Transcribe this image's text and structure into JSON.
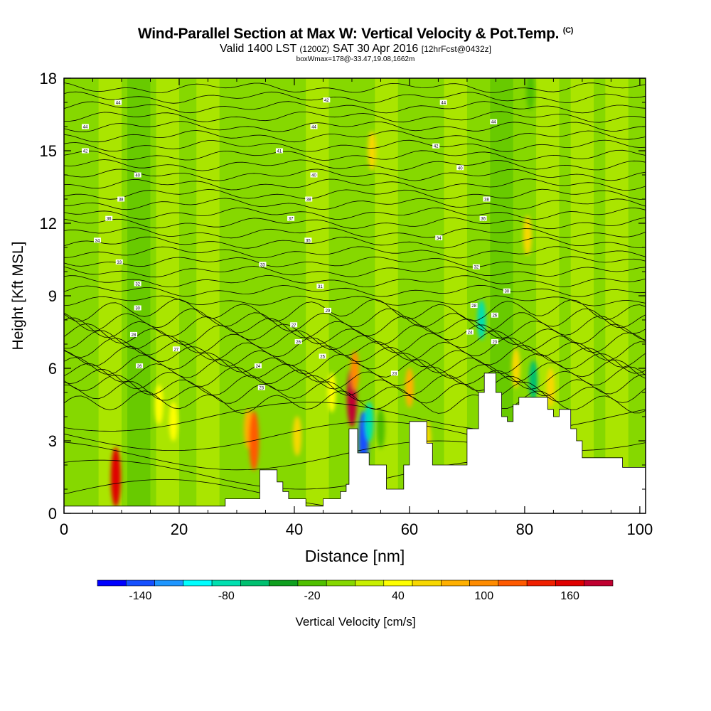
{
  "title": "Wind-Parallel Section at Max W: Vertical Velocity & Pot.Temp.",
  "title_unit": "(C)",
  "subtitle_main": "Valid 1400 LST",
  "subtitle_z": "(1200Z)",
  "subtitle_date": "SAT 30 Apr 2016",
  "subtitle_fcst": "[12hrFcst@0432z]",
  "subtitle2": "boxWmax=178@-33.47,19.08,1662m",
  "chart_data": {
    "type": "heatmap",
    "xlabel": "Distance [nm]",
    "ylabel": "Height [Kft MSL]",
    "xlim": [
      0,
      101
    ],
    "ylim": [
      0,
      18
    ],
    "xticks": [
      0,
      20,
      40,
      60,
      80,
      100
    ],
    "yticks": [
      0,
      3,
      6,
      9,
      12,
      15,
      18
    ],
    "colorbar": {
      "label": "Vertical Velocity [cm/s]",
      "ticks": [
        -140,
        -80,
        -20,
        40,
        100,
        160
      ],
      "min": -170,
      "max": 190,
      "step": 20,
      "colors": [
        "#0000ff",
        "#1650ff",
        "#1e96ff",
        "#00ffff",
        "#00e0b0",
        "#00c070",
        "#10a020",
        "#50c000",
        "#86d800",
        "#c8f000",
        "#ffff00",
        "#f8d800",
        "#ffb000",
        "#ff8c00",
        "#ff5a00",
        "#f02000",
        "#e00000",
        "#c00030"
      ]
    },
    "terrain_kft": [
      [
        0,
        0.3
      ],
      [
        27,
        0.3
      ],
      [
        28,
        0.6
      ],
      [
        33,
        0.6
      ],
      [
        34,
        1.8
      ],
      [
        36,
        1.8
      ],
      [
        37,
        1.3
      ],
      [
        38,
        0.9
      ],
      [
        39,
        0.6
      ],
      [
        42,
        0.3
      ],
      [
        45,
        0.6
      ],
      [
        48,
        0.9
      ],
      [
        49,
        1.2
      ],
      [
        49.5,
        3.5
      ],
      [
        50.5,
        3.5
      ],
      [
        51,
        2.5
      ],
      [
        52,
        2.5
      ],
      [
        53,
        2.0
      ],
      [
        55,
        2.0
      ],
      [
        56,
        1.0
      ],
      [
        58,
        1.0
      ],
      [
        59,
        2.0
      ],
      [
        60,
        3.8
      ],
      [
        62,
        3.8
      ],
      [
        63,
        2.9
      ],
      [
        64,
        2.0
      ],
      [
        69,
        2.0
      ],
      [
        70,
        3.5
      ],
      [
        72,
        5.0
      ],
      [
        73,
        5.8
      ],
      [
        75,
        5.0
      ],
      [
        76,
        4.0
      ],
      [
        77,
        3.8
      ],
      [
        78,
        4.5
      ],
      [
        79,
        4.8
      ],
      [
        83,
        4.8
      ],
      [
        84,
        4.3
      ],
      [
        85,
        4.0
      ],
      [
        86,
        4.3
      ],
      [
        87,
        4.3
      ],
      [
        88,
        3.5
      ],
      [
        89,
        3.0
      ],
      [
        90,
        2.3
      ],
      [
        96,
        2.3
      ],
      [
        97,
        1.9
      ],
      [
        101,
        1.9
      ]
    ],
    "w_cells": [
      {
        "x": 9,
        "y": 1.5,
        "w": 160
      },
      {
        "x": 16.5,
        "y": 4.5,
        "w": 40
      },
      {
        "x": 19,
        "y": 3.8,
        "w": 40
      },
      {
        "x": 32,
        "y": 3.5,
        "w": 80
      },
      {
        "x": 33,
        "y": 3.0,
        "w": 120
      },
      {
        "x": 40.5,
        "y": 3.2,
        "w": 60
      },
      {
        "x": 46.5,
        "y": 5.0,
        "w": 40
      },
      {
        "x": 50,
        "y": 4.8,
        "w": 170
      },
      {
        "x": 50.5,
        "y": 5.9,
        "w": 100
      },
      {
        "x": 52,
        "y": 3.0,
        "w": -150
      },
      {
        "x": 53,
        "y": 3.8,
        "w": -90
      },
      {
        "x": 55,
        "y": 3.5,
        "w": -30
      },
      {
        "x": 60,
        "y": 5.2,
        "w": 80
      },
      {
        "x": 63,
        "y": 3.0,
        "w": 60
      },
      {
        "x": 72.5,
        "y": 8.0,
        "w": -80
      },
      {
        "x": 78.5,
        "y": 6.0,
        "w": 60
      },
      {
        "x": 81.5,
        "y": 5.5,
        "w": -70
      },
      {
        "x": 84.5,
        "y": 5.2,
        "w": 60
      },
      {
        "x": 80.5,
        "y": 11.5,
        "w": 60
      },
      {
        "x": 53.5,
        "y": 15.0,
        "w": 60
      },
      {
        "x": 81,
        "y": 17.5,
        "w": -30
      }
    ],
    "theta_levels_kft": [
      0.8,
      1.6,
      2.4,
      3.2,
      4.0,
      4.6,
      5.0,
      5.3,
      5.6,
      5.9,
      6.2,
      6.5,
      6.8,
      7.1,
      7.4,
      7.7,
      8.0,
      8.4,
      8.8,
      9.2,
      9.6,
      10.0,
      10.4,
      10.8,
      11.2,
      11.6,
      12.0,
      12.4,
      12.8,
      13.2,
      13.6,
      14.0,
      14.4,
      14.8,
      15.2,
      15.6,
      16.0,
      16.4,
      16.8,
      17.2,
      17.6
    ]
  },
  "theta_labels": [
    {
      "x": 9.4,
      "y": 17.0,
      "t": "44"
    },
    {
      "x": 45.6,
      "y": 17.1,
      "t": "42"
    },
    {
      "x": 65.9,
      "y": 17.0,
      "t": "44"
    },
    {
      "x": 3.7,
      "y": 16.0,
      "t": "44"
    },
    {
      "x": 43.4,
      "y": 16.0,
      "t": "44"
    },
    {
      "x": 74.6,
      "y": 16.2,
      "t": "44"
    },
    {
      "x": 3.7,
      "y": 15.0,
      "t": "42"
    },
    {
      "x": 37.4,
      "y": 15.0,
      "t": "41"
    },
    {
      "x": 64.6,
      "y": 15.2,
      "t": "42"
    },
    {
      "x": 12.8,
      "y": 14.0,
      "t": "40"
    },
    {
      "x": 43.4,
      "y": 14.0,
      "t": "40"
    },
    {
      "x": 68.8,
      "y": 14.3,
      "t": "40"
    },
    {
      "x": 9.9,
      "y": 13.0,
      "t": "38"
    },
    {
      "x": 42.5,
      "y": 13.0,
      "t": "38"
    },
    {
      "x": 73.4,
      "y": 13.0,
      "t": "38"
    },
    {
      "x": 7.8,
      "y": 12.2,
      "t": "36"
    },
    {
      "x": 39.4,
      "y": 12.2,
      "t": "37"
    },
    {
      "x": 72.8,
      "y": 12.2,
      "t": "36"
    },
    {
      "x": 5.8,
      "y": 11.3,
      "t": "34"
    },
    {
      "x": 42.4,
      "y": 11.3,
      "t": "35"
    },
    {
      "x": 65.1,
      "y": 11.4,
      "t": "34"
    },
    {
      "x": 9.6,
      "y": 10.4,
      "t": "33"
    },
    {
      "x": 34.5,
      "y": 10.3,
      "t": "33"
    },
    {
      "x": 71.6,
      "y": 10.2,
      "t": "32"
    },
    {
      "x": 12.8,
      "y": 9.5,
      "t": "32"
    },
    {
      "x": 44.5,
      "y": 9.4,
      "t": "31"
    },
    {
      "x": 76.9,
      "y": 9.2,
      "t": "30"
    },
    {
      "x": 12.8,
      "y": 8.5,
      "t": "30"
    },
    {
      "x": 45.8,
      "y": 8.4,
      "t": "29"
    },
    {
      "x": 71.2,
      "y": 8.6,
      "t": "28"
    },
    {
      "x": 39.9,
      "y": 7.8,
      "t": "27"
    },
    {
      "x": 74.8,
      "y": 8.2,
      "t": "26"
    },
    {
      "x": 12.1,
      "y": 7.4,
      "t": "28"
    },
    {
      "x": 70.5,
      "y": 7.5,
      "t": "24"
    },
    {
      "x": 40.7,
      "y": 7.1,
      "t": "26"
    },
    {
      "x": 74.8,
      "y": 7.1,
      "t": "23"
    },
    {
      "x": 19.5,
      "y": 6.8,
      "t": "27"
    },
    {
      "x": 44.9,
      "y": 6.5,
      "t": "25"
    },
    {
      "x": 13.1,
      "y": 6.1,
      "t": "26"
    },
    {
      "x": 33.7,
      "y": 6.1,
      "t": "24"
    },
    {
      "x": 57.4,
      "y": 5.8,
      "t": "23"
    },
    {
      "x": 34.3,
      "y": 5.2,
      "t": "23"
    }
  ]
}
